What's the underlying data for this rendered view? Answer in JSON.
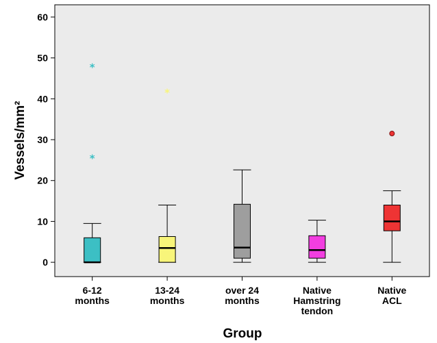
{
  "chart_data": {
    "type": "boxplot",
    "xlabel": "Group",
    "ylabel": "Vessels/mm²",
    "ylim": [
      -3.5,
      63
    ],
    "yticks": [
      0,
      10,
      20,
      30,
      40,
      50,
      60
    ],
    "grid": false,
    "plot_background": "#ebebeb",
    "categories": [
      {
        "label": [
          "6-12",
          "months"
        ],
        "color": "#3cbfc4",
        "min": 0,
        "q1": 0,
        "median": 0,
        "q3": 6,
        "max": 9.5,
        "outliers": [],
        "extremes": [
          48,
          25.7
        ]
      },
      {
        "label": [
          "13-24",
          "months"
        ],
        "color": "#f8f57a",
        "min": 0,
        "q1": 0,
        "median": 3.5,
        "q3": 6.3,
        "max": 14,
        "outliers": [],
        "extremes": [
          41.8
        ]
      },
      {
        "label": [
          "over 24",
          "months"
        ],
        "color": "#9e9e9e",
        "min": 0,
        "q1": 1,
        "median": 3.6,
        "q3": 14.2,
        "max": 22.6,
        "outliers": [],
        "extremes": []
      },
      {
        "label": [
          "Native",
          "Hamstring",
          "tendon"
        ],
        "color": "#f23ee0",
        "min": 0,
        "q1": 1,
        "median": 3,
        "q3": 6.5,
        "max": 10.3,
        "outliers": [],
        "extremes": []
      },
      {
        "label": [
          "Native",
          "ACL"
        ],
        "color": "#ee3434",
        "min": 0,
        "q1": 7.7,
        "median": 10,
        "q3": 14,
        "max": 17.5,
        "outliers": [
          31.5
        ],
        "extremes": []
      }
    ]
  }
}
